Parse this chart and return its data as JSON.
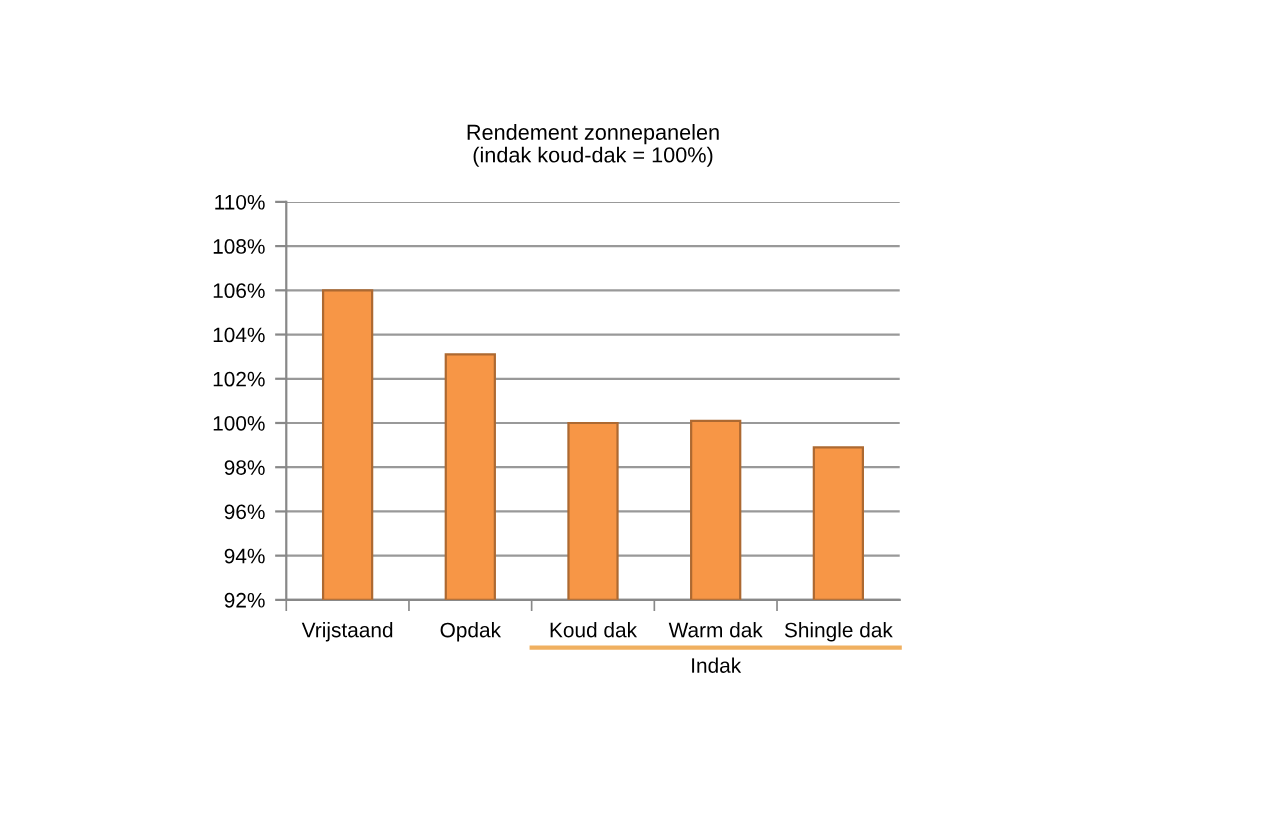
{
  "chart_data": {
    "type": "bar",
    "title": "Rendement zonnepanelen",
    "subtitle": "(indak koud-dak = 100%)",
    "categories": [
      "Vrijstaand",
      "Opdak",
      "Koud dak",
      "Warm dak",
      "Shingle dak"
    ],
    "values": [
      106,
      103.1,
      100,
      100.1,
      98.9
    ],
    "color": "#f79646",
    "ylim": [
      92,
      110
    ],
    "yticks": [
      {
        "value": 92,
        "label": "92%"
      },
      {
        "value": 94,
        "label": "94%"
      },
      {
        "value": 96,
        "label": "96%"
      },
      {
        "value": 98,
        "label": "98%"
      },
      {
        "value": 100,
        "label": "100%"
      },
      {
        "value": 102,
        "label": "102%"
      },
      {
        "value": 104,
        "label": "104%"
      },
      {
        "value": 106,
        "label": "106%"
      },
      {
        "value": 108,
        "label": "108%"
      },
      {
        "value": 110,
        "label": "110%"
      }
    ],
    "grid": "y",
    "annotations": [
      "Indak"
    ]
  }
}
